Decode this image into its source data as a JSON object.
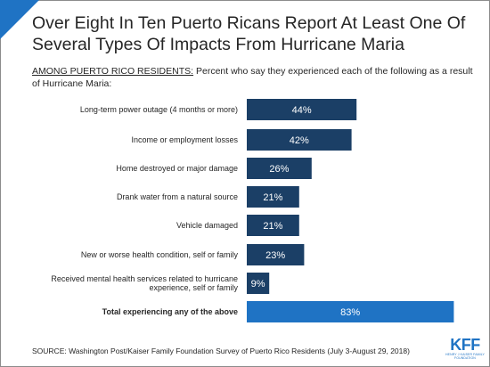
{
  "title": "Over Eight In Ten Puerto Ricans Report At Least One Of Several Types Of Impacts From Hurricane Maria",
  "subtitle_lead": "AMONG PUERTO RICO RESIDENTS:",
  "subtitle_rest": " Percent who say they experienced each of the following as a result of Hurricane Maria:",
  "source": "SOURCE: Washington Post/Kaiser Family Foundation Survey of Puerto Rico Residents (July 3-August 29, 2018)",
  "logo": {
    "mark": "KFF",
    "tagline": "HENRY J KAISER FAMILY FOUNDATION"
  },
  "colors": {
    "bar": "#1b3f66",
    "total_bar": "#1f73c4",
    "accent": "#1f73c4"
  },
  "chart_data": {
    "type": "bar",
    "orientation": "horizontal",
    "categories": [
      "Long-term power outage (4 months or more)",
      "Income or employment losses",
      "Home destroyed or major damage",
      "Drank water from a natural source",
      "Vehicle damaged",
      "New or worse health condition, self or family",
      "Received mental health services related to hurricane experience, self or family",
      "Total experiencing any of the above"
    ],
    "values": [
      44,
      42,
      26,
      21,
      21,
      23,
      9,
      83
    ],
    "value_labels": [
      "44%",
      "42%",
      "26%",
      "21%",
      "21%",
      "23%",
      "9%",
      "83%"
    ],
    "highlight_index": 7,
    "xlim": [
      0,
      100
    ]
  }
}
